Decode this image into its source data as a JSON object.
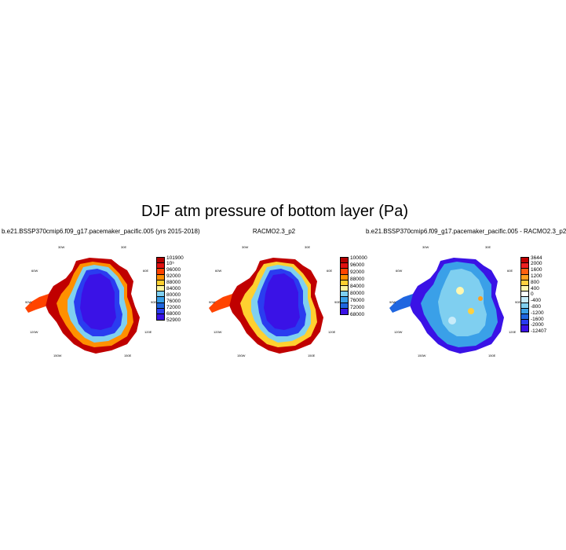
{
  "title": "DJF atm pressure of bottom layer (Pa)",
  "panels": [
    {
      "title": "b.e21.BSSP370cmip6.f09_g17.pacemaker_pacific.005 (yrs 2015-2018)",
      "map": "model",
      "colorbar": [
        "101900",
        "10⁵",
        "96000",
        "92000",
        "88000",
        "84000",
        "80000",
        "76000",
        "72000",
        "68000",
        "52900"
      ],
      "colors": [
        "#b40000",
        "#e01010",
        "#ff4400",
        "#ff9000",
        "#ffd030",
        "#fff6a0",
        "#7fd0f0",
        "#3aa0e8",
        "#1f66e0",
        "#2a3cf0",
        "#3a12e6"
      ]
    },
    {
      "title": "RACMO2.3_p2",
      "map": "racmo",
      "colorbar": [
        "100000",
        "96000",
        "92000",
        "88000",
        "84000",
        "80000",
        "76000",
        "72000",
        "68000"
      ],
      "colors": [
        "#b40000",
        "#e01010",
        "#ff4400",
        "#ff9000",
        "#ffd030",
        "#fff6a0",
        "#7fd0f0",
        "#3aa0e8",
        "#1f66e0",
        "#3a12e6"
      ]
    },
    {
      "title": "b.e21.BSSP370cmip6.f09_g17.pacemaker_pacific.005 - RACMO2.3_p2",
      "map": "diff",
      "colorbar": [
        "3644",
        "2000",
        "1600",
        "1200",
        "800",
        "400",
        "0",
        "-400",
        "-800",
        "-1200",
        "-1600",
        "-2000",
        "-12407"
      ],
      "colors": [
        "#c00000",
        "#ee2020",
        "#ff6010",
        "#ffa020",
        "#ffd040",
        "#fff8b0",
        "#ffffff",
        "#c8ecfa",
        "#7fcff0",
        "#3aa0e8",
        "#1f66e0",
        "#2a3cf0",
        "#3a12e6"
      ]
    }
  ],
  "lon_labels": [
    "30W",
    "30E",
    "60W",
    "60E",
    "90W",
    "90E",
    "120W",
    "120E",
    "150W",
    "150E",
    "180"
  ]
}
